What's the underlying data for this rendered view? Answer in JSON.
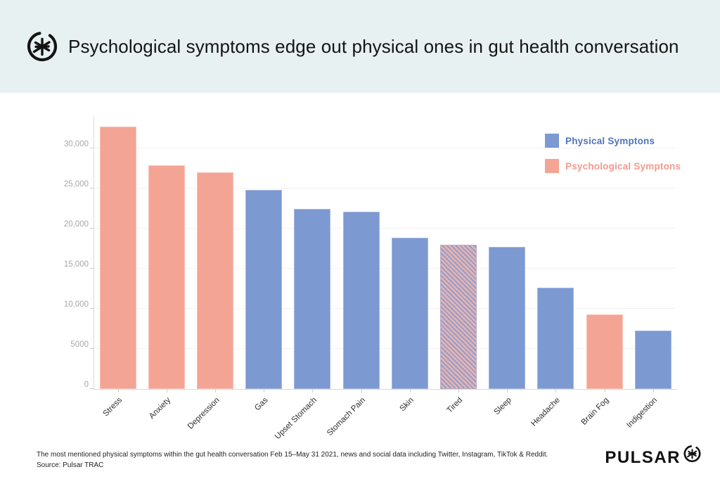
{
  "header": {
    "title": "Psychological symptoms edge out physical ones in gut health conversation",
    "logo_icon": "pulsar-asterisk-icon",
    "background_color": "#e8f1f2"
  },
  "legend": {
    "position": "top-right",
    "items": [
      {
        "label": "Physical Symptons",
        "group": "physical",
        "swatch_color": "#7c99d1",
        "text_color": "#4f74be"
      },
      {
        "label": "Psychological Symptons",
        "group": "psychological",
        "swatch_color": "#f4a494",
        "text_color": "#f29a8e"
      }
    ]
  },
  "chart_data": {
    "type": "bar",
    "title": "Psychological symptoms edge out physical ones in gut health conversation",
    "categories": [
      "Stress",
      "Anxiety",
      "Depression",
      "Gas",
      "Upset Stomach",
      "Stomach Pain",
      "Skin",
      "Tired",
      "Sleep",
      "Headache",
      "Brain Fog",
      "Indigestion"
    ],
    "values": [
      32700,
      27900,
      27000,
      24800,
      22400,
      22100,
      18800,
      18000,
      17700,
      12600,
      9300,
      7250
    ],
    "groups": [
      "psychological",
      "psychological",
      "psychological",
      "physical",
      "physical",
      "physical",
      "physical",
      "both",
      "physical",
      "physical",
      "psychological",
      "physical"
    ],
    "xlabel": "",
    "ylabel": "",
    "ylim": [
      0,
      34000
    ],
    "yticks": [
      {
        "value": 0,
        "label": "0"
      },
      {
        "value": 5000,
        "label": "5000"
      },
      {
        "value": 10000,
        "label": "10,000"
      },
      {
        "value": 15000,
        "label": "15,000"
      },
      {
        "value": 20000,
        "label": "20,000"
      },
      {
        "value": 25000,
        "label": "25,000"
      },
      {
        "value": 30000,
        "label": "30,000"
      }
    ],
    "grid": true,
    "legend_position": "top-right",
    "colors": {
      "physical": "#7c99d1",
      "psychological": "#f4a494",
      "both": "diagonal-hatch-blue-salmon"
    }
  },
  "footer": {
    "caption": "The most mentioned physical symptoms within the gut health conversation Feb 15–May 31 2021, news and social data including Twitter, Instagram, TikTok & Reddit.",
    "source": "Source: Pulsar TRAC",
    "brand": "PULSAR",
    "brand_icon": "pulsar-asterisk-icon"
  }
}
